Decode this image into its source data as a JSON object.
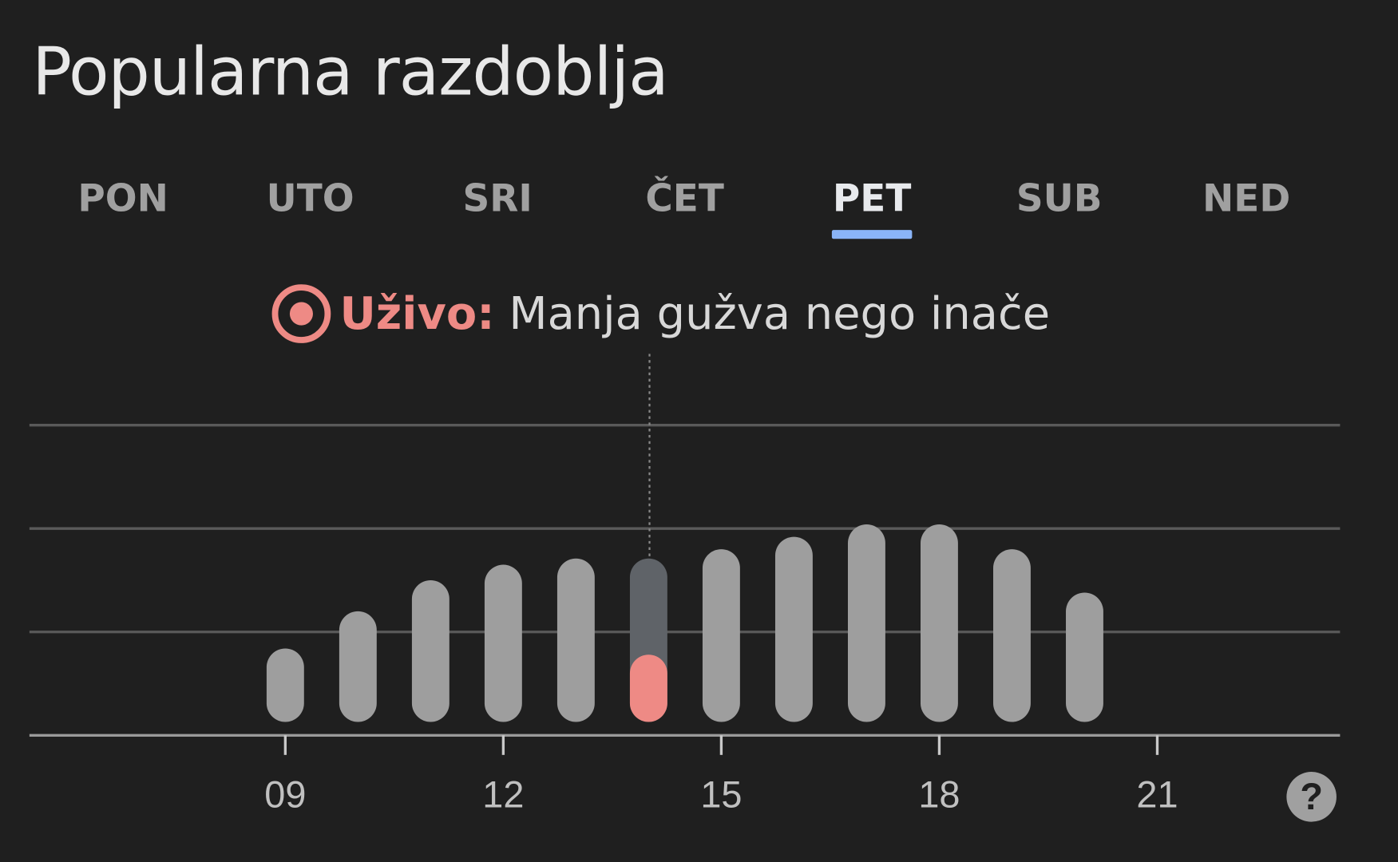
{
  "title": "Popularna razdoblja",
  "days": [
    {
      "label": "PON"
    },
    {
      "label": "UTO"
    },
    {
      "label": "SRI"
    },
    {
      "label": "ČET"
    },
    {
      "label": "PET",
      "selected": true
    },
    {
      "label": "SUB"
    },
    {
      "label": "NED"
    }
  ],
  "live": {
    "label": "Uživo:",
    "text": "Manja gužva nego inače",
    "icon": "live-target-icon"
  },
  "help": {
    "icon": "help-icon",
    "label": "?"
  },
  "colors": {
    "background": "#1f1f1f",
    "bar": "#9e9e9e",
    "live_usual": "#5f6368",
    "live_now": "#ee8a85",
    "selected_day": "#8ab4f8"
  },
  "chart_data": {
    "type": "bar",
    "x": [
      9,
      10,
      11,
      12,
      13,
      14,
      15,
      16,
      17,
      18,
      19,
      20
    ],
    "values": [
      28,
      40,
      50,
      55,
      57,
      57,
      60,
      64,
      68,
      68,
      60,
      46
    ],
    "live": {
      "hour": 14,
      "value": 26
    },
    "xticks": [
      "09",
      "12",
      "15",
      "18",
      "21"
    ],
    "xtick_values": [
      9,
      12,
      15,
      18,
      21
    ],
    "ylim": [
      0,
      100
    ],
    "grid": true
  }
}
